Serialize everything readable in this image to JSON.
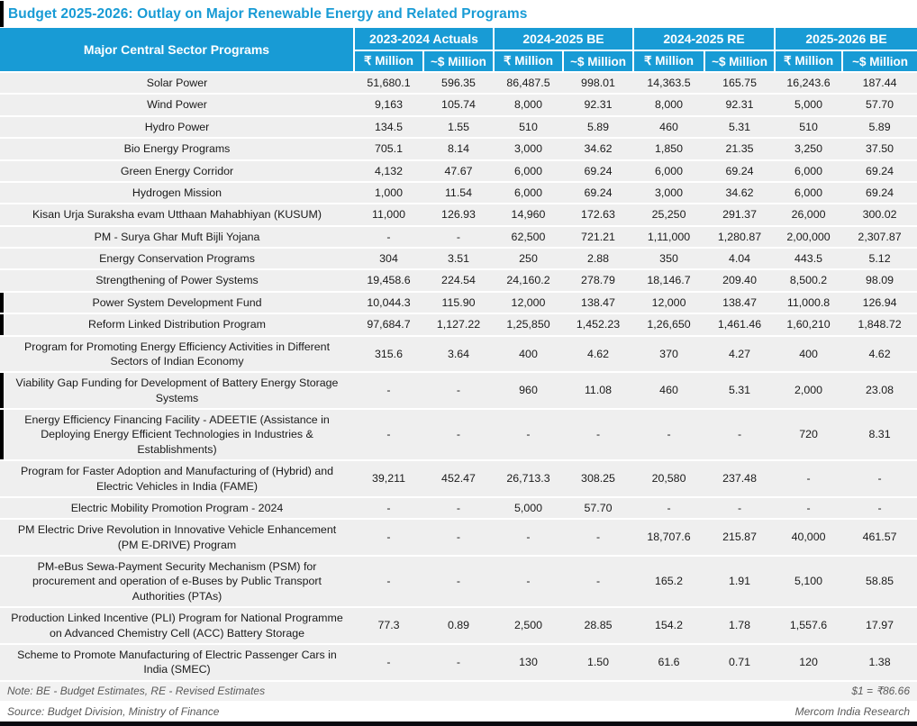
{
  "colors": {
    "header_blue": "#189BD5",
    "title_blue": "#189BD5",
    "row_gray": "#EFEFEF",
    "note_row_gray": "#F2F2F2",
    "footer_text_gray": "#595959",
    "bottom_bar_black": "#0a0a10"
  },
  "chart_data": {
    "type": "table",
    "title": "Budget 2025-2026: Outlay on Major Renewable Energy and Related Programs",
    "program_column_header": "Major Central Sector Programs",
    "year_groups": [
      "2023-2024 Actuals",
      "2024-2025 BE",
      "2024-2025 RE",
      "2025-2026 BE"
    ],
    "unit_headers": [
      "₹ Million",
      "~$ Million",
      "₹ Million",
      "~$ Million",
      "₹ Million",
      "~$ Million",
      "₹ Million",
      "~$ Million"
    ],
    "rows": [
      {
        "program": "Solar Power",
        "values": [
          "51,680.1",
          "596.35",
          "86,487.5",
          "998.01",
          "14,363.5",
          "165.75",
          "16,243.6",
          "187.44"
        ],
        "left_mark": false
      },
      {
        "program": "Wind Power",
        "values": [
          "9,163",
          "105.74",
          "8,000",
          "92.31",
          "8,000",
          "92.31",
          "5,000",
          "57.70"
        ],
        "left_mark": false
      },
      {
        "program": "Hydro Power",
        "values": [
          "134.5",
          "1.55",
          "510",
          "5.89",
          "460",
          "5.31",
          "510",
          "5.89"
        ],
        "left_mark": false
      },
      {
        "program": "Bio Energy Programs",
        "values": [
          "705.1",
          "8.14",
          "3,000",
          "34.62",
          "1,850",
          "21.35",
          "3,250",
          "37.50"
        ],
        "left_mark": false
      },
      {
        "program": "Green Energy Corridor",
        "values": [
          "4,132",
          "47.67",
          "6,000",
          "69.24",
          "6,000",
          "69.24",
          "6,000",
          "69.24"
        ],
        "left_mark": false
      },
      {
        "program": "Hydrogen Mission",
        "values": [
          "1,000",
          "11.54",
          "6,000",
          "69.24",
          "3,000",
          "34.62",
          "6,000",
          "69.24"
        ],
        "left_mark": false
      },
      {
        "program": "Kisan Urja Suraksha evam Utthaan Mahabhiyan (KUSUM)",
        "values": [
          "11,000",
          "126.93",
          "14,960",
          "172.63",
          "25,250",
          "291.37",
          "26,000",
          "300.02"
        ],
        "left_mark": false
      },
      {
        "program": "PM - Surya Ghar Muft Bijli Yojana",
        "values": [
          "-",
          "-",
          "62,500",
          "721.21",
          "1,11,000",
          "1,280.87",
          "2,00,000",
          "2,307.87"
        ],
        "left_mark": false
      },
      {
        "program": "Energy Conservation Programs",
        "values": [
          "304",
          "3.51",
          "250",
          "2.88",
          "350",
          "4.04",
          "443.5",
          "5.12"
        ],
        "left_mark": false
      },
      {
        "program": "Strengthening of Power Systems",
        "values": [
          "19,458.6",
          "224.54",
          "24,160.2",
          "278.79",
          "18,146.7",
          "209.40",
          "8,500.2",
          "98.09"
        ],
        "left_mark": false
      },
      {
        "program": "Power System Development Fund",
        "values": [
          "10,044.3",
          "115.90",
          "12,000",
          "138.47",
          "12,000",
          "138.47",
          "11,000.8",
          "126.94"
        ],
        "left_mark": true
      },
      {
        "program": "Reform Linked Distribution Program",
        "values": [
          "97,684.7",
          "1,127.22",
          "1,25,850",
          "1,452.23",
          "1,26,650",
          "1,461.46",
          "1,60,210",
          "1,848.72"
        ],
        "left_mark": true
      },
      {
        "program": "Program for Promoting Energy Efficiency Activities in Different Sectors of Indian Economy",
        "values": [
          "315.6",
          "3.64",
          "400",
          "4.62",
          "370",
          "4.27",
          "400",
          "4.62"
        ],
        "left_mark": false
      },
      {
        "program": "Viability Gap Funding for Development of Battery Energy Storage Systems",
        "values": [
          "-",
          "-",
          "960",
          "11.08",
          "460",
          "5.31",
          "2,000",
          "23.08"
        ],
        "left_mark": true
      },
      {
        "program": "Energy Efficiency Financing Facility - ADEETIE (Assistance in Deploying Energy Efficient Technologies in Industries & Establishments)",
        "values": [
          "-",
          "-",
          "-",
          "-",
          "-",
          "-",
          "720",
          "8.31"
        ],
        "left_mark": true
      },
      {
        "program": "Program for Faster Adoption and Manufacturing of (Hybrid) and Electric Vehicles in India (FAME)",
        "values": [
          "39,211",
          "452.47",
          "26,713.3",
          "308.25",
          "20,580",
          "237.48",
          "-",
          "-"
        ],
        "left_mark": false
      },
      {
        "program": "Electric Mobility Promotion Program - 2024",
        "values": [
          "-",
          "-",
          "5,000",
          "57.70",
          "-",
          "-",
          "-",
          "-"
        ],
        "left_mark": false
      },
      {
        "program": "PM Electric Drive Revolution in Innovative Vehicle Enhancement (PM E-DRIVE) Program",
        "values": [
          "-",
          "-",
          "-",
          "-",
          "18,707.6",
          "215.87",
          "40,000",
          "461.57"
        ],
        "left_mark": false
      },
      {
        "program": "PM-eBus Sewa-Payment Security Mechanism (PSM) for procurement and operation of e-Buses by Public Transport Authorities (PTAs)",
        "values": [
          "-",
          "-",
          "-",
          "-",
          "165.2",
          "1.91",
          "5,100",
          "58.85"
        ],
        "left_mark": false
      },
      {
        "program": "Production Linked Incentive (PLI) Program for National Programme on Advanced Chemistry Cell (ACC) Battery Storage",
        "values": [
          "77.3",
          "0.89",
          "2,500",
          "28.85",
          "154.2",
          "1.78",
          "1,557.6",
          "17.97"
        ],
        "left_mark": false
      },
      {
        "program": "Scheme to Promote Manufacturing of Electric Passenger Cars in India (SMEC)",
        "values": [
          "-",
          "-",
          "130",
          "1.50",
          "61.6",
          "0.71",
          "120",
          "1.38"
        ],
        "left_mark": false
      }
    ],
    "note": "Note: BE - Budget Estimates, RE - Revised Estimates",
    "exchange_rate": "$1 = ₹86.66",
    "source": "Source: Budget Division, Ministry of Finance",
    "credit": "Mercom India Research"
  }
}
